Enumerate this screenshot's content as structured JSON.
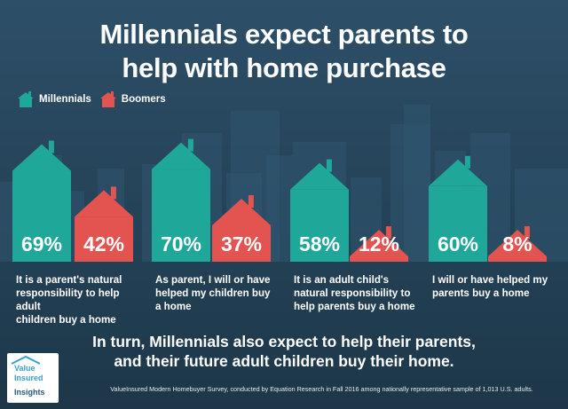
{
  "title_line1": "Millennials expect parents to",
  "title_line2": "help with home purchase",
  "chart_data": {
    "type": "bar",
    "categories": [
      "It is a parent's natural responsibility to help adult children buy a home",
      "As parent, I will or have helped my children buy a home",
      "It is an adult child's natural responsibility to help parents buy a home",
      "I will or have helped my parents buy a home"
    ],
    "caption_lines": [
      [
        "It is a parent's natural",
        "responsibility to help adult",
        "children buy a home"
      ],
      [
        "As parent, I will or have",
        "helped my children buy",
        "a home"
      ],
      [
        "It is an adult child's",
        "natural responsibility to",
        "help parents buy a home"
      ],
      [
        "I will or have helped my",
        "parents buy a home"
      ]
    ],
    "series": [
      {
        "name": "Millennials",
        "values": [
          69,
          70,
          58,
          60
        ],
        "labels": [
          "69%",
          "70%",
          "58%",
          "60%"
        ],
        "color": "#1fa89a"
      },
      {
        "name": "Boomers",
        "values": [
          42,
          37,
          12,
          8
        ],
        "labels": [
          "42%",
          "37%",
          "12%",
          "8%"
        ],
        "color": "#e35450"
      }
    ],
    "ylim": [
      0,
      100
    ]
  },
  "footer_line1": "In turn, Millennials also expect to help their parents,",
  "footer_line2": "and their future adult children buy their home.",
  "source": "ValueInsured Modern Homebuyer Survey, conducted by Equation Research in Fall 2016 among nationally representative sample of 1,013 U.S. adults.",
  "logo_lines": [
    "Value",
    "Insured",
    "Insights"
  ],
  "colors": {
    "background": "#244257",
    "millennials": "#1fa89a",
    "boomers": "#e35450",
    "skyline": "#2f5670"
  }
}
